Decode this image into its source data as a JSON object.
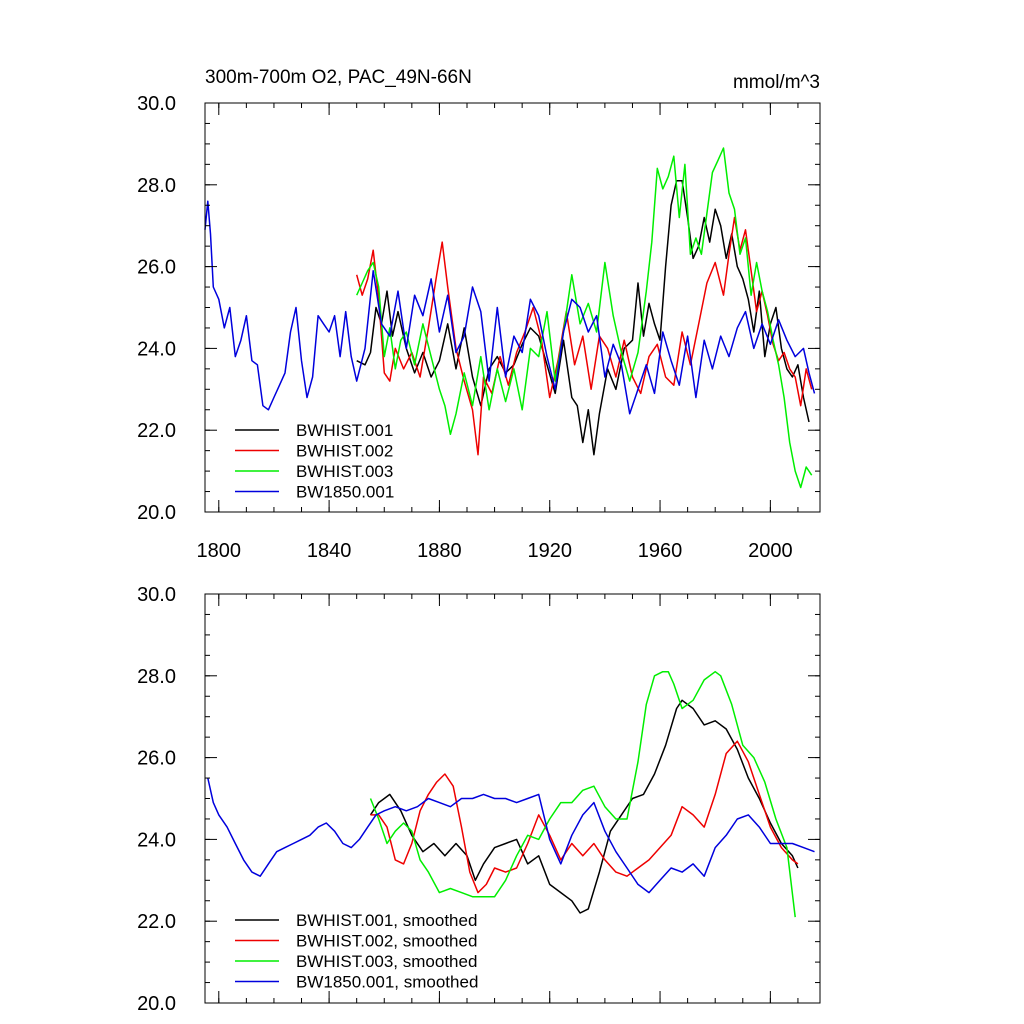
{
  "chart_data": [
    {
      "type": "line",
      "title": "300m-700m O2, PAC_49N-66N",
      "units": "mmol/m^3",
      "xlim": [
        1795,
        2018
      ],
      "ylim": [
        20,
        30
      ],
      "x_ticks": [
        1800,
        1840,
        1880,
        1920,
        1960,
        2000
      ],
      "x_minor_step": 10,
      "y_ticks": [
        20,
        22,
        24,
        26,
        28,
        30
      ],
      "y_tick_labels": [
        "20.0",
        "22.0",
        "24.0",
        "26.0",
        "28.0",
        "30.0"
      ],
      "y_minor_step": 0.5,
      "show_x_labels": true,
      "legend_position": "bottom-left",
      "series": [
        {
          "name": "BWHIST.001",
          "color": "#000000",
          "x": [
            1850,
            1853,
            1855,
            1857,
            1859,
            1861,
            1863,
            1865,
            1868,
            1871,
            1874,
            1877,
            1880,
            1883,
            1886,
            1889,
            1892,
            1895,
            1898,
            1901,
            1904,
            1907,
            1910,
            1913,
            1916,
            1919,
            1922,
            1925,
            1928,
            1930,
            1932,
            1934,
            1936,
            1938,
            1941,
            1944,
            1947,
            1950,
            1952,
            1954,
            1956,
            1958,
            1960,
            1962,
            1964,
            1966,
            1968,
            1970,
            1972,
            1974,
            1976,
            1978,
            1980,
            1982,
            1984,
            1986,
            1988,
            1990,
            1992,
            1994,
            1996,
            1998,
            2000,
            2002,
            2004,
            2006,
            2008,
            2010,
            2012,
            2014
          ],
          "y": [
            23.7,
            23.6,
            23.9,
            25.0,
            24.6,
            25.4,
            24.3,
            24.9,
            24.0,
            23.4,
            23.9,
            23.3,
            23.7,
            24.6,
            23.5,
            24.5,
            23.3,
            22.6,
            23.5,
            23.8,
            23.4,
            23.6,
            24.1,
            24.5,
            24.3,
            23.6,
            22.9,
            24.2,
            22.8,
            22.6,
            21.7,
            22.5,
            21.4,
            22.4,
            23.5,
            23.0,
            24.0,
            24.2,
            25.6,
            24.3,
            25.1,
            24.6,
            24.2,
            26.0,
            27.5,
            28.1,
            28.1,
            27.2,
            26.2,
            26.5,
            27.2,
            26.6,
            27.4,
            27.0,
            26.2,
            26.8,
            26.0,
            25.7,
            25.2,
            24.4,
            25.4,
            23.8,
            24.6,
            25.0,
            24.0,
            23.5,
            23.3,
            23.6,
            22.8,
            22.2
          ]
        },
        {
          "name": "BWHIST.002",
          "color": "#ee0000",
          "x": [
            1850,
            1852,
            1854,
            1856,
            1858,
            1860,
            1862,
            1864,
            1867,
            1870,
            1873,
            1876,
            1879,
            1881,
            1883,
            1886,
            1889,
            1892,
            1894,
            1896,
            1899,
            1902,
            1905,
            1908,
            1911,
            1914,
            1917,
            1920,
            1923,
            1926,
            1929,
            1932,
            1935,
            1938,
            1941,
            1944,
            1947,
            1950,
            1953,
            1956,
            1959,
            1962,
            1965,
            1968,
            1971,
            1974,
            1977,
            1980,
            1983,
            1985,
            1987,
            1989,
            1991,
            1993,
            1995,
            1997,
            1999,
            2001,
            2003,
            2005,
            2007,
            2009,
            2011,
            2013,
            2015
          ],
          "y": [
            25.8,
            25.3,
            25.7,
            26.4,
            25.2,
            23.4,
            23.2,
            24.0,
            23.5,
            23.9,
            23.3,
            24.5,
            25.8,
            26.6,
            25.5,
            24.0,
            23.2,
            22.5,
            21.4,
            23.3,
            22.9,
            23.8,
            23.1,
            23.9,
            24.4,
            25.0,
            24.2,
            22.8,
            23.7,
            24.9,
            23.6,
            24.3,
            23.0,
            24.3,
            24.0,
            23.3,
            24.2,
            23.3,
            22.9,
            23.8,
            24.1,
            23.3,
            23.1,
            24.4,
            23.6,
            24.6,
            25.6,
            26.1,
            25.3,
            26.3,
            27.2,
            26.4,
            26.9,
            25.9,
            24.9,
            25.4,
            24.8,
            24.1,
            23.7,
            23.9,
            23.5,
            23.3,
            22.6,
            23.5,
            23.0
          ]
        },
        {
          "name": "BWHIST.003",
          "color": "#00ee00",
          "x": [
            1850,
            1852,
            1854,
            1856,
            1858,
            1860,
            1862,
            1864,
            1866,
            1868,
            1871,
            1874,
            1877,
            1880,
            1882,
            1884,
            1886,
            1889,
            1892,
            1895,
            1898,
            1901,
            1904,
            1907,
            1910,
            1913,
            1916,
            1919,
            1922,
            1925,
            1928,
            1931,
            1934,
            1937,
            1940,
            1943,
            1946,
            1949,
            1952,
            1955,
            1957,
            1959,
            1961,
            1963,
            1965,
            1967,
            1969,
            1971,
            1973,
            1975,
            1977,
            1979,
            1981,
            1983,
            1985,
            1987,
            1989,
            1991,
            1993,
            1995,
            1997,
            1999,
            2001,
            2003,
            2005,
            2007,
            2009,
            2011,
            2013,
            2015
          ],
          "y": [
            25.3,
            25.6,
            25.9,
            26.1,
            25.5,
            23.8,
            24.5,
            23.5,
            24.2,
            24.4,
            23.6,
            24.6,
            23.8,
            23.0,
            22.6,
            21.9,
            22.4,
            23.4,
            22.6,
            23.8,
            22.5,
            23.5,
            22.7,
            23.5,
            22.5,
            24.0,
            23.8,
            24.9,
            23.2,
            24.4,
            25.8,
            24.6,
            25.1,
            24.4,
            26.1,
            24.8,
            23.9,
            23.2,
            23.9,
            25.4,
            26.6,
            28.4,
            27.9,
            28.2,
            28.7,
            27.2,
            28.5,
            26.3,
            26.7,
            26.3,
            27.3,
            28.3,
            28.6,
            28.9,
            27.8,
            27.4,
            26.3,
            26.7,
            25.3,
            26.1,
            25.4,
            24.9,
            24.2,
            23.6,
            22.8,
            21.7,
            21.0,
            20.6,
            21.1,
            20.9
          ]
        },
        {
          "name": "BW1850.001",
          "color": "#0000dd",
          "x": [
            1795,
            1796,
            1797,
            1798,
            1800,
            1802,
            1804,
            1806,
            1808,
            1810,
            1812,
            1814,
            1816,
            1818,
            1820,
            1822,
            1824,
            1826,
            1828,
            1830,
            1832,
            1834,
            1836,
            1838,
            1840,
            1842,
            1844,
            1846,
            1848,
            1850,
            1853,
            1856,
            1859,
            1862,
            1865,
            1868,
            1871,
            1874,
            1877,
            1880,
            1883,
            1886,
            1889,
            1892,
            1895,
            1898,
            1901,
            1904,
            1907,
            1910,
            1913,
            1916,
            1919,
            1922,
            1925,
            1928,
            1931,
            1934,
            1937,
            1940,
            1943,
            1946,
            1949,
            1952,
            1955,
            1958,
            1961,
            1964,
            1967,
            1970,
            1973,
            1976,
            1979,
            1982,
            1985,
            1988,
            1991,
            1994,
            1997,
            2000,
            2003,
            2006,
            2009,
            2012,
            2014,
            2016
          ],
          "y": [
            26.9,
            27.6,
            26.8,
            25.5,
            25.2,
            24.5,
            25.0,
            23.8,
            24.2,
            24.8,
            23.7,
            23.6,
            22.6,
            22.5,
            22.8,
            23.1,
            23.4,
            24.4,
            25.0,
            23.7,
            22.8,
            23.3,
            24.8,
            24.6,
            24.4,
            24.8,
            23.8,
            24.9,
            23.8,
            23.2,
            24.0,
            25.9,
            24.6,
            24.3,
            25.4,
            24.0,
            25.3,
            24.8,
            25.7,
            24.4,
            25.3,
            23.9,
            24.3,
            25.5,
            24.9,
            23.2,
            25.0,
            23.3,
            24.3,
            23.9,
            25.2,
            24.8,
            23.8,
            23.0,
            24.4,
            25.2,
            25.0,
            24.4,
            24.8,
            23.3,
            24.1,
            23.6,
            22.4,
            23.0,
            23.6,
            22.9,
            24.4,
            23.7,
            23.1,
            24.3,
            22.8,
            24.2,
            23.5,
            24.3,
            23.8,
            24.5,
            24.9,
            24.0,
            24.6,
            24.1,
            24.7,
            24.2,
            23.8,
            24.0,
            23.4,
            22.9
          ]
        }
      ]
    },
    {
      "type": "line",
      "title": "",
      "units": "",
      "xlim": [
        1795,
        2018
      ],
      "ylim": [
        20,
        30
      ],
      "x_ticks": [
        1800,
        1840,
        1880,
        1920,
        1960,
        2000
      ],
      "x_minor_step": 10,
      "y_ticks": [
        20,
        22,
        24,
        26,
        28,
        30
      ],
      "y_tick_labels": [
        "20.0",
        "22.0",
        "24.0",
        "26.0",
        "28.0",
        "30.0"
      ],
      "y_minor_step": 0.5,
      "show_x_labels": false,
      "legend_position": "bottom-left",
      "series": [
        {
          "name": "BWHIST.001, smoothed",
          "color": "#000000",
          "x": [
            1855,
            1858,
            1862,
            1866,
            1870,
            1874,
            1878,
            1882,
            1886,
            1890,
            1893,
            1896,
            1900,
            1904,
            1908,
            1912,
            1916,
            1920,
            1924,
            1928,
            1931,
            1934,
            1938,
            1942,
            1946,
            1950,
            1954,
            1958,
            1962,
            1966,
            1968,
            1972,
            1976,
            1980,
            1984,
            1988,
            1992,
            1996,
            2000,
            2004,
            2008,
            2010
          ],
          "y": [
            24.6,
            24.9,
            25.1,
            24.7,
            24.1,
            23.7,
            23.9,
            23.6,
            23.9,
            23.6,
            23.0,
            23.4,
            23.8,
            23.9,
            24.0,
            23.4,
            23.6,
            22.9,
            22.7,
            22.5,
            22.2,
            22.3,
            23.2,
            24.2,
            24.6,
            25.0,
            25.1,
            25.6,
            26.3,
            27.2,
            27.4,
            27.2,
            26.8,
            26.9,
            26.7,
            26.2,
            25.5,
            25.0,
            24.4,
            23.9,
            23.6,
            23.3
          ]
        },
        {
          "name": "BWHIST.002, smoothed",
          "color": "#ee0000",
          "x": [
            1855,
            1858,
            1861,
            1864,
            1867,
            1870,
            1873,
            1876,
            1879,
            1882,
            1885,
            1888,
            1891,
            1894,
            1897,
            1900,
            1904,
            1908,
            1912,
            1916,
            1920,
            1924,
            1928,
            1932,
            1936,
            1940,
            1944,
            1948,
            1952,
            1956,
            1960,
            1964,
            1968,
            1972,
            1976,
            1980,
            1984,
            1988,
            1992,
            1996,
            2000,
            2004,
            2008,
            2010
          ],
          "y": [
            24.6,
            24.6,
            24.3,
            23.5,
            23.4,
            23.9,
            24.7,
            25.1,
            25.4,
            25.6,
            25.3,
            24.3,
            23.2,
            22.7,
            22.9,
            23.3,
            23.2,
            23.3,
            23.9,
            24.6,
            24.1,
            23.5,
            23.9,
            23.6,
            23.9,
            23.5,
            23.2,
            23.1,
            23.3,
            23.5,
            23.8,
            24.1,
            24.8,
            24.6,
            24.3,
            25.1,
            26.1,
            26.4,
            25.9,
            25.1,
            24.3,
            23.8,
            23.5,
            23.4
          ]
        },
        {
          "name": "BWHIST.003, smoothed",
          "color": "#00ee00",
          "x": [
            1855,
            1858,
            1861,
            1864,
            1867,
            1870,
            1873,
            1876,
            1880,
            1884,
            1888,
            1892,
            1896,
            1900,
            1904,
            1908,
            1912,
            1916,
            1920,
            1924,
            1928,
            1932,
            1936,
            1940,
            1944,
            1948,
            1952,
            1955,
            1958,
            1961,
            1963,
            1965,
            1968,
            1972,
            1976,
            1980,
            1982,
            1986,
            1990,
            1994,
            1998,
            2002,
            2006,
            2009
          ],
          "y": [
            25.0,
            24.5,
            23.9,
            24.2,
            24.4,
            24.2,
            23.5,
            23.2,
            22.7,
            22.8,
            22.7,
            22.6,
            22.6,
            22.6,
            23.0,
            23.6,
            24.1,
            24.0,
            24.5,
            24.9,
            24.9,
            25.2,
            25.3,
            24.8,
            24.5,
            24.5,
            25.9,
            27.3,
            28.0,
            28.1,
            28.1,
            27.8,
            27.2,
            27.4,
            27.9,
            28.1,
            28.0,
            27.3,
            26.3,
            26.0,
            25.4,
            24.5,
            23.8,
            22.1
          ]
        },
        {
          "name": "BW1850.001, smoothed",
          "color": "#0000dd",
          "x": [
            1796,
            1798,
            1800,
            1803,
            1806,
            1809,
            1812,
            1815,
            1818,
            1821,
            1824,
            1827,
            1830,
            1833,
            1836,
            1839,
            1842,
            1845,
            1848,
            1851,
            1854,
            1857,
            1860,
            1864,
            1868,
            1872,
            1876,
            1880,
            1884,
            1888,
            1892,
            1896,
            1900,
            1904,
            1908,
            1912,
            1916,
            1920,
            1924,
            1928,
            1932,
            1936,
            1940,
            1944,
            1948,
            1952,
            1956,
            1960,
            1964,
            1968,
            1972,
            1976,
            1980,
            1984,
            1988,
            1992,
            1996,
            2000,
            2004,
            2008,
            2012,
            2016
          ],
          "y": [
            25.5,
            24.9,
            24.6,
            24.3,
            23.9,
            23.5,
            23.2,
            23.1,
            23.4,
            23.7,
            23.8,
            23.9,
            24.0,
            24.1,
            24.3,
            24.4,
            24.2,
            23.9,
            23.8,
            24.0,
            24.3,
            24.6,
            24.7,
            24.8,
            24.7,
            24.8,
            25.0,
            24.9,
            24.8,
            25.0,
            25.0,
            25.1,
            25.0,
            25.0,
            24.9,
            25.0,
            25.1,
            24.0,
            23.4,
            24.1,
            24.6,
            24.9,
            24.2,
            23.7,
            23.3,
            22.9,
            22.7,
            23.0,
            23.3,
            23.2,
            23.4,
            23.1,
            23.8,
            24.1,
            24.5,
            24.6,
            24.3,
            23.9,
            23.9,
            23.9,
            23.8,
            23.7
          ]
        }
      ]
    }
  ]
}
